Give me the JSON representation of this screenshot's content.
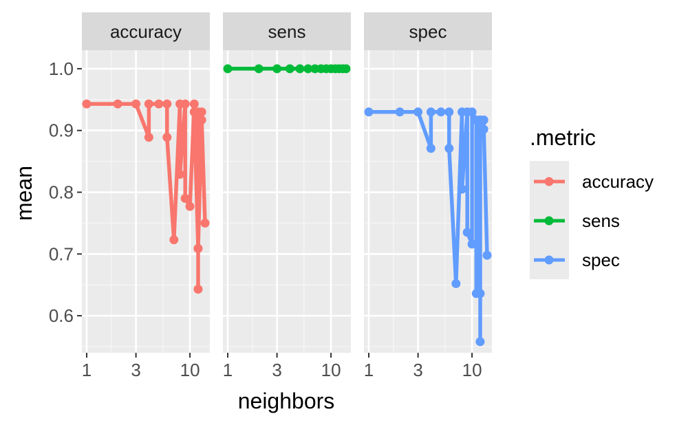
{
  "chart_data": {
    "type": "line",
    "facet_by": ".metric",
    "xlabel": "neighbors",
    "ylabel": "mean",
    "x_scale": "log10",
    "xlim": [
      1,
      14
    ],
    "ylim": [
      0.54,
      1.03
    ],
    "x_ticks": [
      1,
      3,
      10
    ],
    "x_tick_labels": [
      "1",
      "3",
      "10"
    ],
    "y_ticks": [
      0.6,
      0.7,
      0.8,
      0.9,
      1.0
    ],
    "y_tick_labels": [
      "0.6",
      "0.7",
      "0.8",
      "0.9",
      "1.0"
    ],
    "grid": true,
    "legend": {
      "title": ".metric",
      "position": "right",
      "entries": [
        "accuracy",
        "sens",
        "spec"
      ]
    },
    "series": [
      {
        "name": "accuracy",
        "color": "#F8766D",
        "x": [
          1,
          2,
          3,
          4,
          4,
          5,
          6,
          6,
          7,
          8,
          8,
          9,
          9,
          10,
          11,
          11,
          11,
          12,
          12,
          12,
          12,
          13,
          13,
          14
        ],
        "y": [
          0.943,
          0.943,
          0.943,
          0.889,
          0.943,
          0.943,
          0.943,
          0.889,
          0.723,
          0.943,
          0.829,
          0.943,
          0.79,
          0.777,
          0.943,
          0.93,
          0.93,
          0.709,
          0.643,
          0.93,
          0.709,
          0.93,
          0.917,
          0.75
        ]
      },
      {
        "name": "sens",
        "color": "#00BA38",
        "x": [
          1,
          2,
          3,
          4,
          5,
          6,
          7,
          8,
          9,
          10,
          11,
          12,
          13,
          14
        ],
        "y": [
          1,
          1,
          1,
          1,
          1,
          1,
          1,
          1,
          1,
          1,
          1,
          1,
          1,
          1
        ]
      },
      {
        "name": "spec",
        "color": "#619CFF",
        "x": [
          1,
          2,
          3,
          4,
          4,
          5,
          6,
          6,
          7,
          8,
          8,
          9,
          9,
          10,
          10,
          11,
          11,
          12,
          12,
          12,
          12,
          13,
          13,
          14
        ],
        "y": [
          0.93,
          0.93,
          0.93,
          0.871,
          0.93,
          0.93,
          0.93,
          0.871,
          0.652,
          0.93,
          0.805,
          0.93,
          0.735,
          0.716,
          0.93,
          0.917,
          0.636,
          0.917,
          0.558,
          0.636,
          0.917,
          0.917,
          0.902,
          0.698
        ]
      }
    ]
  }
}
